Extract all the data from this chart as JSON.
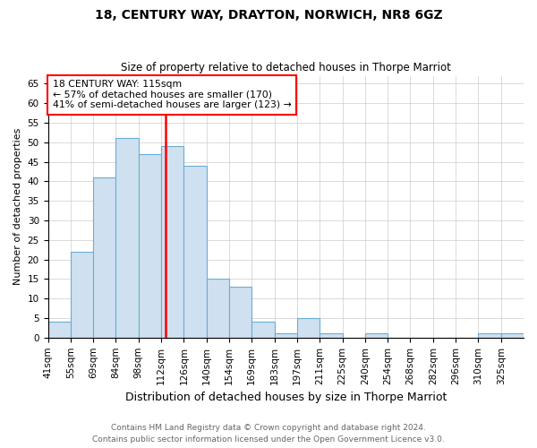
{
  "title1": "18, CENTURY WAY, DRAYTON, NORWICH, NR8 6GZ",
  "title2": "Size of property relative to detached houses in Thorpe Marriot",
  "xlabel": "Distribution of detached houses by size in Thorpe Marriot",
  "ylabel": "Number of detached properties",
  "categories": [
    "41sqm",
    "55sqm",
    "69sqm",
    "84sqm",
    "98sqm",
    "112sqm",
    "126sqm",
    "140sqm",
    "154sqm",
    "169sqm",
    "183sqm",
    "197sqm",
    "211sqm",
    "225sqm",
    "240sqm",
    "254sqm",
    "268sqm",
    "282sqm",
    "296sqm",
    "310sqm",
    "325sqm"
  ],
  "values": [
    4,
    22,
    41,
    51,
    47,
    49,
    44,
    15,
    13,
    4,
    1,
    5,
    1,
    0,
    1,
    0,
    0,
    0,
    0,
    1,
    1
  ],
  "bar_color_fill": "#cfe0f0",
  "bar_color_edge": "#6aadd5",
  "vline_color": "red",
  "vline_x_index": 5.25,
  "annotation_label": "18 CENTURY WAY: 115sqm",
  "annotation_line1": "← 57% of detached houses are smaller (170)",
  "annotation_line2": "41% of semi-detached houses are larger (123) →",
  "ylim": [
    0,
    67
  ],
  "yticks": [
    0,
    5,
    10,
    15,
    20,
    25,
    30,
    35,
    40,
    45,
    50,
    55,
    60,
    65
  ],
  "footer1": "Contains HM Land Registry data © Crown copyright and database right 2024.",
  "footer2": "Contains public sector information licensed under the Open Government Licence v3.0.",
  "title_fontsize": 10,
  "subtitle_fontsize": 8.5,
  "ylabel_fontsize": 8,
  "xlabel_fontsize": 9,
  "tick_fontsize": 7.5,
  "footer_fontsize": 6.5,
  "footer_color": "#666666",
  "grid_color": "#cccccc",
  "annotation_fontsize": 7.8
}
